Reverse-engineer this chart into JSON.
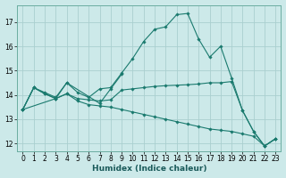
{
  "xlabel": "Humidex (Indice chaleur)",
  "ylabel": "",
  "bg_color": "#cce9e9",
  "line_color": "#1a7a6e",
  "grid_color": "#aacfcf",
  "xlim": [
    -0.5,
    23.5
  ],
  "ylim": [
    11.7,
    17.7
  ],
  "yticks": [
    12,
    13,
    14,
    15,
    16,
    17
  ],
  "xticks": [
    0,
    1,
    2,
    3,
    4,
    5,
    6,
    7,
    8,
    9,
    10,
    11,
    12,
    13,
    14,
    15,
    16,
    17,
    18,
    19,
    20,
    21,
    22,
    23
  ],
  "lines": [
    {
      "x": [
        0,
        1,
        2,
        3,
        4,
        5,
        6,
        7,
        8,
        9,
        10,
        11,
        12,
        13,
        14,
        15,
        16,
        17,
        18,
        19,
        20,
        21,
        22,
        23
      ],
      "y": [
        13.4,
        14.3,
        14.1,
        13.9,
        14.5,
        14.1,
        13.9,
        14.25,
        14.3,
        14.9,
        15.5,
        16.2,
        16.7,
        16.8,
        17.3,
        17.35,
        16.3,
        15.55,
        16.0,
        14.7,
        13.35,
        12.5,
        11.9,
        12.2
      ]
    },
    {
      "x": [
        0,
        1,
        2,
        3,
        4,
        5,
        6,
        7,
        8,
        9,
        10,
        11,
        12,
        13,
        14,
        15,
        16,
        17,
        18,
        19,
        20,
        21,
        22,
        23
      ],
      "y": [
        13.4,
        14.3,
        14.05,
        13.85,
        14.05,
        13.85,
        13.8,
        13.75,
        13.8,
        14.2,
        14.25,
        14.3,
        14.35,
        14.38,
        14.4,
        14.42,
        14.45,
        14.5,
        14.5,
        14.55,
        13.35,
        12.5,
        11.9,
        12.2
      ]
    },
    {
      "x": [
        0,
        3,
        4,
        7,
        8,
        9
      ],
      "y": [
        13.4,
        13.85,
        14.5,
        13.65,
        14.25,
        14.85
      ]
    },
    {
      "x": [
        0,
        1,
        2,
        3,
        4,
        5,
        6,
        7,
        8,
        9,
        10,
        11,
        12,
        13,
        14,
        15,
        16,
        17,
        18,
        19,
        20,
        21,
        22,
        23
      ],
      "y": [
        13.4,
        14.3,
        14.05,
        13.85,
        14.05,
        13.75,
        13.6,
        13.55,
        13.5,
        13.4,
        13.3,
        13.2,
        13.1,
        13.0,
        12.9,
        12.8,
        12.7,
        12.6,
        12.55,
        12.5,
        12.4,
        12.3,
        11.9,
        12.2
      ]
    }
  ]
}
